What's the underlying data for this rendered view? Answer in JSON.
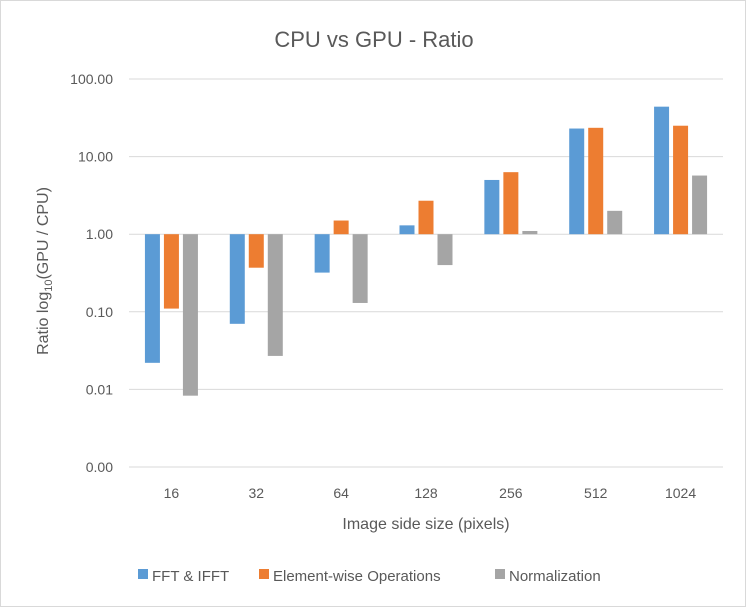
{
  "chart_data": {
    "type": "bar",
    "title": "CPU vs GPU - Ratio",
    "xlabel": "Image side size (pixels)",
    "ylabel": "Ratio log10(GPU / CPU)",
    "ylabel_parts": {
      "pre": "Ratio log",
      "sub": "10",
      "post": "(GPU / CPU)"
    },
    "y_scale": "log",
    "y_ticks": [
      "100.00",
      "10.00",
      "1.00",
      "0.10",
      "0.01",
      "0.00"
    ],
    "categories": [
      "16",
      "32",
      "64",
      "128",
      "256",
      "512",
      "1024"
    ],
    "series": [
      {
        "name": "FFT & IFFT",
        "color": "#5B9BD5",
        "values": [
          0.022,
          0.07,
          0.32,
          1.3,
          5.0,
          23,
          44
        ]
      },
      {
        "name": "Element-wise Operations",
        "color": "#ED7D31",
        "values": [
          0.11,
          0.37,
          1.5,
          2.7,
          6.3,
          23.5,
          25
        ]
      },
      {
        "name": "Normalization",
        "color": "#A5A5A5",
        "values": [
          0.0083,
          0.027,
          0.13,
          0.4,
          1.1,
          2.0,
          5.7
        ]
      }
    ],
    "grid": true,
    "legend_position": "bottom"
  }
}
